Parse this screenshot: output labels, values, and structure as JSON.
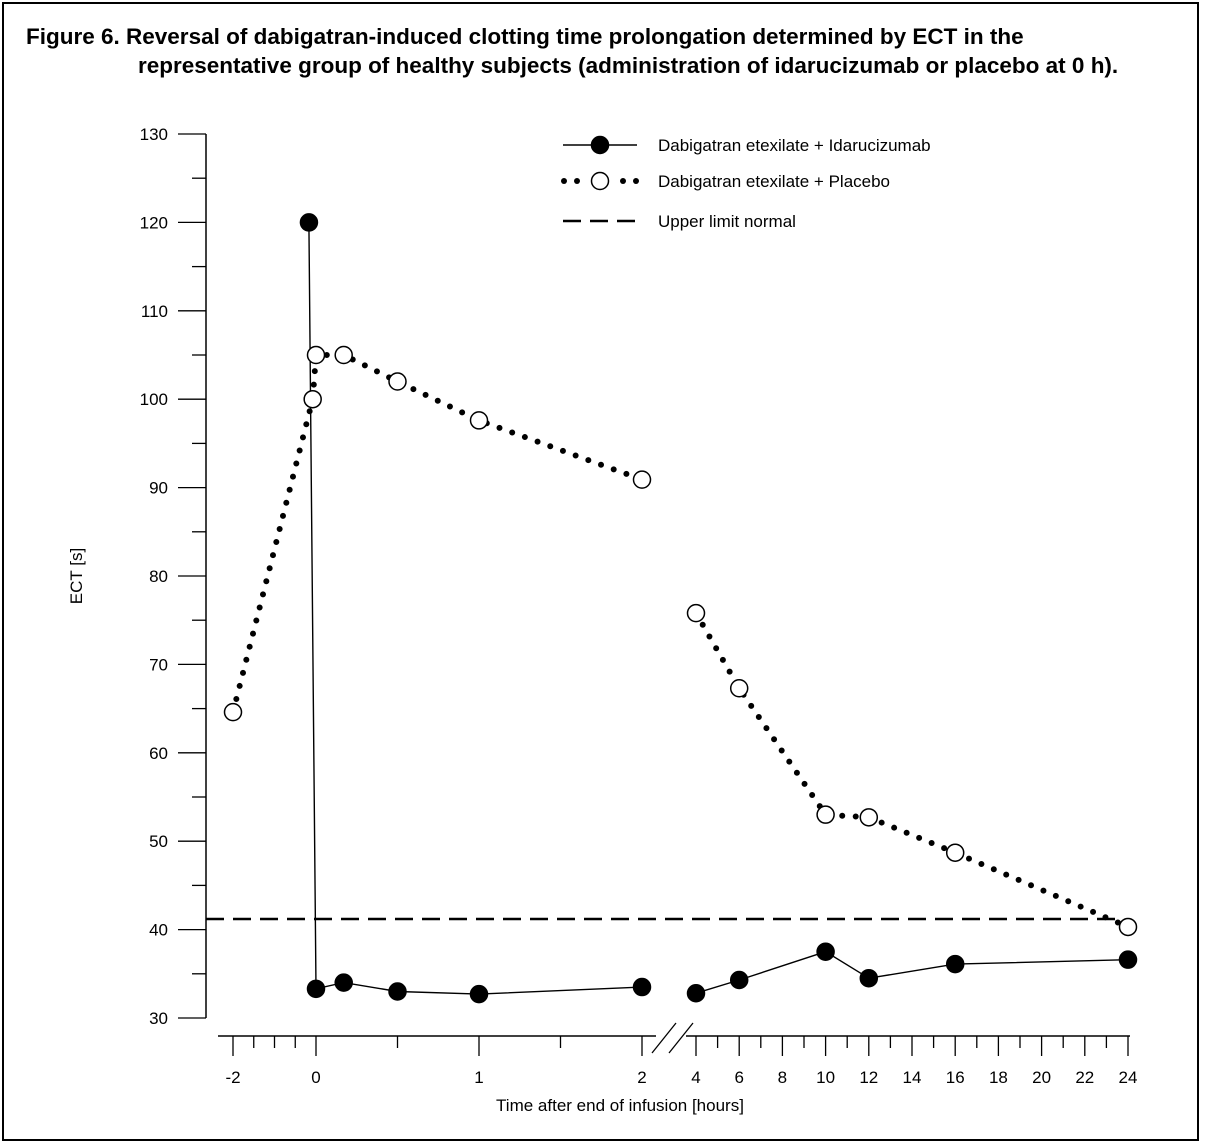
{
  "figure": {
    "title_line1": "Figure 6. Reversal of dabigatran-induced clotting time prolongation determined by ECT in the",
    "title_line2": "representative group of healthy subjects (administration of idarucizumab or placebo at 0 h)."
  },
  "chart_data": {
    "type": "line",
    "xlabel": "Time after end of infusion [hours]",
    "ylabel": "ECT [s]",
    "ylim": [
      30,
      130
    ],
    "y_ticks": [
      30,
      40,
      50,
      60,
      70,
      80,
      90,
      100,
      110,
      120,
      130
    ],
    "x_axis_broken": true,
    "x_segments": [
      {
        "range": [
          -2,
          2
        ],
        "ticks": [
          -2,
          0,
          1,
          2
        ],
        "minor": [
          -1.5,
          -1,
          -0.5,
          0.5,
          1.5
        ]
      },
      {
        "range": [
          4,
          24
        ],
        "ticks": [
          4,
          6,
          8,
          10,
          12,
          14,
          16,
          18,
          20,
          22,
          24
        ],
        "minor": [
          5,
          7,
          9,
          11,
          13,
          15,
          17,
          19,
          21,
          23
        ]
      }
    ],
    "legend_position": "top-right",
    "series": [
      {
        "name": "Dabigatran etexilate + Idarucizumab",
        "marker": "filled-circle",
        "line": "solid",
        "color": "#000000",
        "points": [
          {
            "x": -0.17,
            "y": 120
          },
          {
            "x": 0.0,
            "y": 33.3
          },
          {
            "x": 0.17,
            "y": 34.0
          },
          {
            "x": 0.5,
            "y": 33.0
          },
          {
            "x": 1.0,
            "y": 32.7
          },
          {
            "x": 2.0,
            "y": 33.5
          },
          {
            "x": 4,
            "y": 32.8
          },
          {
            "x": 6,
            "y": 34.3
          },
          {
            "x": 10,
            "y": 37.5
          },
          {
            "x": 12,
            "y": 34.5
          },
          {
            "x": 16,
            "y": 36.1
          },
          {
            "x": 24,
            "y": 36.6
          }
        ]
      },
      {
        "name": "Dabigatran etexilate + Placebo",
        "marker": "open-circle",
        "line": "dotted",
        "color": "#000000",
        "points": [
          {
            "x": -2.0,
            "y": 64.6
          },
          {
            "x": -0.08,
            "y": 100.0
          },
          {
            "x": 0.0,
            "y": 105.0
          },
          {
            "x": 0.17,
            "y": 105.0
          },
          {
            "x": 0.5,
            "y": 102.0
          },
          {
            "x": 1.0,
            "y": 97.6
          },
          {
            "x": 2.0,
            "y": 90.9
          },
          {
            "x": 4,
            "y": 75.8
          },
          {
            "x": 6,
            "y": 67.3
          },
          {
            "x": 10,
            "y": 53.0
          },
          {
            "x": 12,
            "y": 52.7
          },
          {
            "x": 16,
            "y": 48.7
          },
          {
            "x": 24,
            "y": 40.3
          }
        ]
      }
    ],
    "reference_lines": [
      {
        "name": "Upper limit normal",
        "y": 41.2,
        "line": "dashed"
      }
    ]
  }
}
